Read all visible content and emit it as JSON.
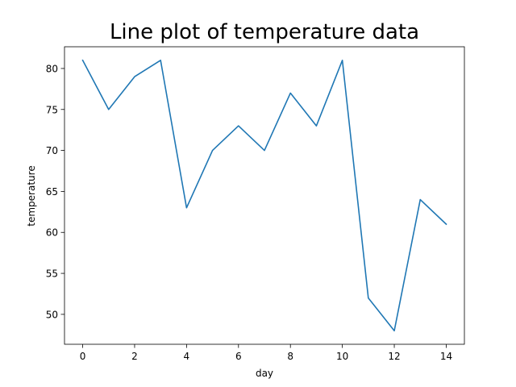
{
  "chart_data": {
    "type": "line",
    "title": "Line plot of temperature data",
    "xlabel": "day",
    "ylabel": "temperature",
    "x": [
      0,
      1,
      2,
      3,
      4,
      5,
      6,
      7,
      8,
      9,
      10,
      11,
      12,
      13,
      14
    ],
    "series": [
      {
        "values": [
          81,
          75,
          79,
          81,
          63,
          70,
          73,
          70,
          77,
          73,
          81,
          52,
          48,
          64,
          61
        ],
        "color": "#1f77b4"
      }
    ],
    "xlim": [
      -0.7,
      14.7
    ],
    "ylim": [
      46.35,
      82.65
    ],
    "xticks": [
      0,
      2,
      4,
      6,
      8,
      10,
      12,
      14
    ],
    "yticks": [
      50,
      55,
      60,
      65,
      70,
      75,
      80
    ],
    "grid": false,
    "legend": false
  }
}
